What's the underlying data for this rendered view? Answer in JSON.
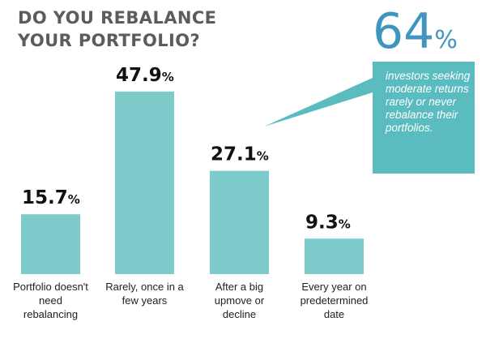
{
  "colors": {
    "title": "#5c5c5c",
    "bar": "#7ecbcc",
    "callout_bg": "#5bbcc0",
    "callout_number": "#3f95bd"
  },
  "title_lines": [
    "DO YOU REBALANCE",
    "YOUR PORTFOLIO?"
  ],
  "callout": {
    "number": "64",
    "percent_sign": "%",
    "text": "investors seeking moderate returns rarely or never rebalance their portfolios."
  },
  "chart_data": {
    "type": "bar",
    "categories": [
      [
        "Portfolio doesn't",
        "need",
        "rebalancing"
      ],
      [
        "Rarely, once in a",
        "few years"
      ],
      [
        "After a big",
        "upmove or",
        "decline"
      ],
      [
        "Every year on",
        "predetermined",
        "date"
      ]
    ],
    "values": [
      15.7,
      47.9,
      27.1,
      9.3
    ],
    "value_labels": [
      "15.7",
      "47.9",
      "27.1",
      "9.3"
    ],
    "value_suffix": "%",
    "ylim": [
      0,
      50
    ],
    "grid": false,
    "legend": "none"
  }
}
